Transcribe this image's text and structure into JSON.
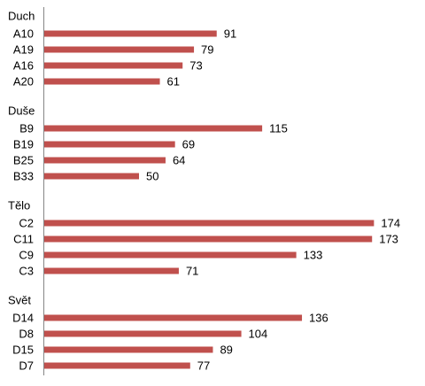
{
  "chart_data": {
    "type": "bar",
    "orientation": "horizontal",
    "bar_color": "#C0504D",
    "axis_color": "#868686",
    "data_labels": true,
    "xlim": [
      0,
      180
    ],
    "grid": false,
    "legend": "none",
    "groups": [
      {
        "name": "Duch",
        "items": [
          {
            "label": "A10",
            "value": 91
          },
          {
            "label": "A19",
            "value": 79
          },
          {
            "label": "A16",
            "value": 73
          },
          {
            "label": "A20",
            "value": 61
          }
        ]
      },
      {
        "name": "Duše",
        "items": [
          {
            "label": "B9",
            "value": 115
          },
          {
            "label": "B19",
            "value": 69
          },
          {
            "label": "B25",
            "value": 64
          },
          {
            "label": "B33",
            "value": 50
          }
        ]
      },
      {
        "name": "Tělo",
        "items": [
          {
            "label": "C2",
            "value": 174
          },
          {
            "label": "C11",
            "value": 173
          },
          {
            "label": "C9",
            "value": 133
          },
          {
            "label": "C3",
            "value": 71
          }
        ]
      },
      {
        "name": "Svět",
        "items": [
          {
            "label": "D14",
            "value": 136
          },
          {
            "label": "D8",
            "value": 104
          },
          {
            "label": "D15",
            "value": 89
          },
          {
            "label": "D7",
            "value": 77
          }
        ]
      }
    ]
  }
}
